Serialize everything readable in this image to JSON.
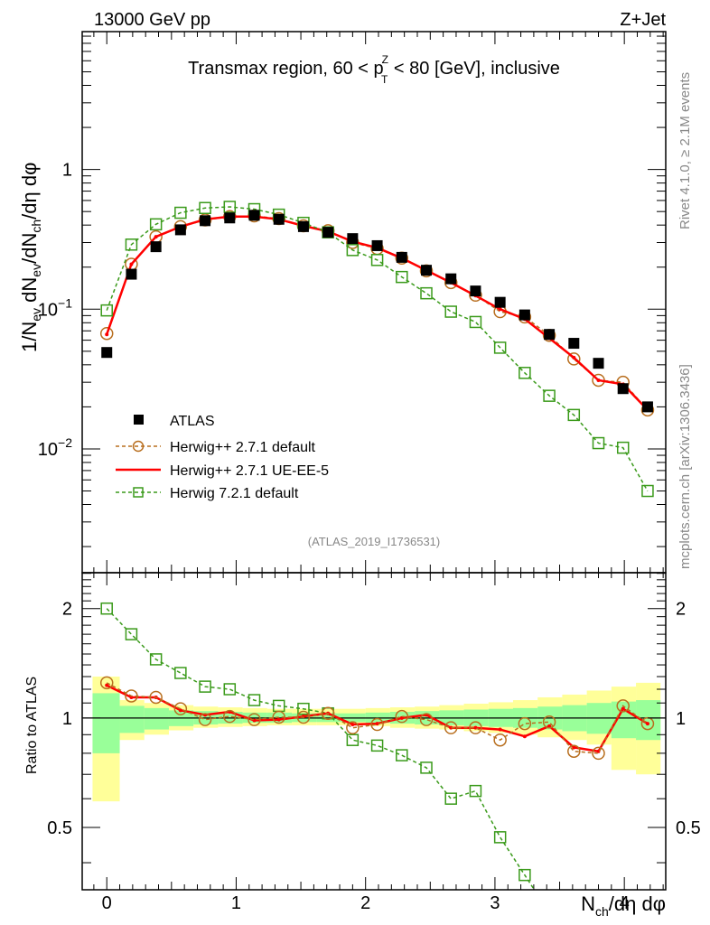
{
  "header": {
    "left": "13000 GeV pp",
    "right": "Z+Jet"
  },
  "side_labels": {
    "top": "Rivet 4.1.0, ≥ 2.1M events",
    "bottom": "mcplots.cern.ch [arXiv:1306.3436]"
  },
  "chart_data": [
    {
      "type": "line",
      "panel": "main",
      "title": "Transmax region, 60 < p_T^Z < 80 [GeV], inclusive",
      "title_parts": {
        "pre": "Transmax region, 60 < p",
        "sup": "Z",
        "sub": "T",
        "post": " < 80 [GeV], inclusive"
      },
      "ylabel": "1/N_ev dN_ev/dN_ch/dη dφ",
      "yscale": "log",
      "ylim": [
        0.0013,
        9.7
      ],
      "xlim": [
        -0.19,
        4.32
      ],
      "yticks": [
        {
          "value": 1,
          "label": "1"
        },
        {
          "value": 0.1,
          "label": "10",
          "exp": "−1"
        },
        {
          "value": 0.01,
          "label": "10",
          "exp": "−2"
        }
      ],
      "x": [
        0,
        0.19,
        0.38,
        0.57,
        0.76,
        0.95,
        1.14,
        1.33,
        1.52,
        1.71,
        1.9,
        2.09,
        2.28,
        2.47,
        2.66,
        2.85,
        3.04,
        3.23,
        3.42,
        3.61,
        3.8,
        3.99,
        4.18
      ],
      "series": [
        {
          "name": "ATLAS",
          "style": "data",
          "color": "#000000",
          "values": [
            0.049,
            0.178,
            0.28,
            0.37,
            0.43,
            0.45,
            0.47,
            0.44,
            0.39,
            0.355,
            0.32,
            0.285,
            0.235,
            0.19,
            0.165,
            0.135,
            0.112,
            0.091,
            0.066,
            0.057,
            0.041,
            0.027,
            0.02
          ]
        },
        {
          "name": "Herwig++ 2.7.1 default",
          "style": "dashed-circle",
          "color": "#b86e1e",
          "values": [
            0.067,
            0.21,
            0.33,
            0.39,
            0.435,
            0.46,
            0.465,
            0.445,
            0.395,
            0.365,
            0.3,
            0.272,
            0.232,
            0.188,
            0.155,
            0.126,
            0.096,
            0.088,
            0.065,
            0.044,
            0.031,
            0.03,
            0.019
          ]
        },
        {
          "name": "Herwig++ 2.7.1 UE-EE-5",
          "style": "solid",
          "color": "#ff0000",
          "values": [
            0.066,
            0.21,
            0.33,
            0.39,
            0.44,
            0.46,
            0.46,
            0.44,
            0.395,
            0.36,
            0.305,
            0.275,
            0.232,
            0.19,
            0.155,
            0.125,
            0.1,
            0.085,
            0.062,
            0.045,
            0.031,
            0.029,
            0.019
          ]
        },
        {
          "name": "Herwig 7.2.1 default",
          "style": "dashed-square",
          "color": "#3a9a1a",
          "values": [
            0.098,
            0.29,
            0.405,
            0.49,
            0.53,
            0.54,
            0.52,
            0.475,
            0.415,
            0.355,
            0.265,
            0.225,
            0.17,
            0.13,
            0.096,
            0.081,
            0.053,
            0.035,
            0.024,
            0.0175,
            0.011,
            0.0102,
            0.005
          ]
        }
      ],
      "legend": {
        "placement": "lower-left"
      },
      "annotation": "(ATLAS_2019_I1736531)"
    },
    {
      "type": "line",
      "panel": "ratio",
      "ylabel": "Ratio to ATLAS",
      "xlabel": "N_ch/dη dφ",
      "yscale": "log",
      "ylim": [
        0.337,
        2.51
      ],
      "xlim": [
        -0.19,
        4.32
      ],
      "yticks": [
        {
          "value": 2,
          "label": "2"
        },
        {
          "value": 1,
          "label": "1"
        },
        {
          "value": 0.5,
          "label": "0.5"
        }
      ],
      "xticks": [
        {
          "value": 0,
          "label": "0"
        },
        {
          "value": 1,
          "label": "1"
        },
        {
          "value": 2,
          "label": "2"
        },
        {
          "value": 3,
          "label": "3"
        },
        {
          "value": 4,
          "label": "4"
        }
      ],
      "x": [
        0,
        0.19,
        0.38,
        0.57,
        0.76,
        0.95,
        1.14,
        1.33,
        1.52,
        1.71,
        1.9,
        2.09,
        2.28,
        2.47,
        2.66,
        2.85,
        3.04,
        3.23,
        3.42,
        3.61,
        3.8,
        3.99,
        4.18
      ],
      "bands": {
        "edges": [
          -0.11,
          0.1,
          0.29,
          0.48,
          0.67,
          0.86,
          1.05,
          1.24,
          1.43,
          1.62,
          1.81,
          2.0,
          2.19,
          2.38,
          2.57,
          2.76,
          2.95,
          3.14,
          3.33,
          3.52,
          3.71,
          3.9,
          4.09,
          4.28
        ],
        "stat_lo": [
          0.8,
          0.91,
          0.93,
          0.95,
          0.96,
          0.965,
          0.97,
          0.97,
          0.975,
          0.975,
          0.975,
          0.97,
          0.965,
          0.96,
          0.955,
          0.95,
          0.945,
          0.94,
          0.93,
          0.92,
          0.905,
          0.88,
          0.87
        ],
        "stat_hi": [
          1.17,
          1.08,
          1.065,
          1.05,
          1.045,
          1.04,
          1.035,
          1.035,
          1.03,
          1.03,
          1.03,
          1.035,
          1.04,
          1.045,
          1.05,
          1.055,
          1.06,
          1.065,
          1.075,
          1.085,
          1.1,
          1.11,
          1.12
        ],
        "syst_lo": [
          0.59,
          0.87,
          0.9,
          0.925,
          0.94,
          0.945,
          0.95,
          0.955,
          0.955,
          0.955,
          0.955,
          0.95,
          0.94,
          0.935,
          0.93,
          0.92,
          0.91,
          0.9,
          0.885,
          0.87,
          0.845,
          0.72,
          0.7
        ],
        "syst_hi": [
          1.3,
          1.12,
          1.1,
          1.085,
          1.075,
          1.07,
          1.065,
          1.06,
          1.06,
          1.06,
          1.06,
          1.065,
          1.07,
          1.075,
          1.085,
          1.095,
          1.105,
          1.12,
          1.14,
          1.16,
          1.19,
          1.22,
          1.25
        ],
        "stat_color": "#99ff99",
        "syst_color": "#ffff99"
      },
      "series": [
        {
          "name": "Herwig++ 2.7.1 default",
          "style": "dashed-circle",
          "color": "#b86e1e",
          "values": [
            1.25,
            1.15,
            1.14,
            1.06,
            0.99,
            1.01,
            0.99,
            1.005,
            1.005,
            1.03,
            0.94,
            0.96,
            1.01,
            0.99,
            0.94,
            0.94,
            0.87,
            0.965,
            0.975,
            0.81,
            0.8,
            1.08,
            0.965
          ]
        },
        {
          "name": "Herwig++ 2.7.1 UE-EE-5",
          "style": "solid",
          "color": "#ff0000",
          "values": [
            1.23,
            1.14,
            1.14,
            1.05,
            1.02,
            1.04,
            0.985,
            0.99,
            1.01,
            1.03,
            0.96,
            0.965,
            1.0,
            1.02,
            0.94,
            0.94,
            0.93,
            0.89,
            0.95,
            0.83,
            0.81,
            1.06,
            0.965
          ]
        },
        {
          "name": "Herwig 7.2.1 default",
          "style": "dashed-square",
          "color": "#3a9a1a",
          "values": [
            2.0,
            1.7,
            1.45,
            1.33,
            1.22,
            1.2,
            1.12,
            1.08,
            1.06,
            1.03,
            0.87,
            0.84,
            0.79,
            0.73,
            0.6,
            0.63,
            0.47,
            0.37,
            null,
            null,
            null,
            null,
            null
          ]
        }
      ]
    }
  ]
}
